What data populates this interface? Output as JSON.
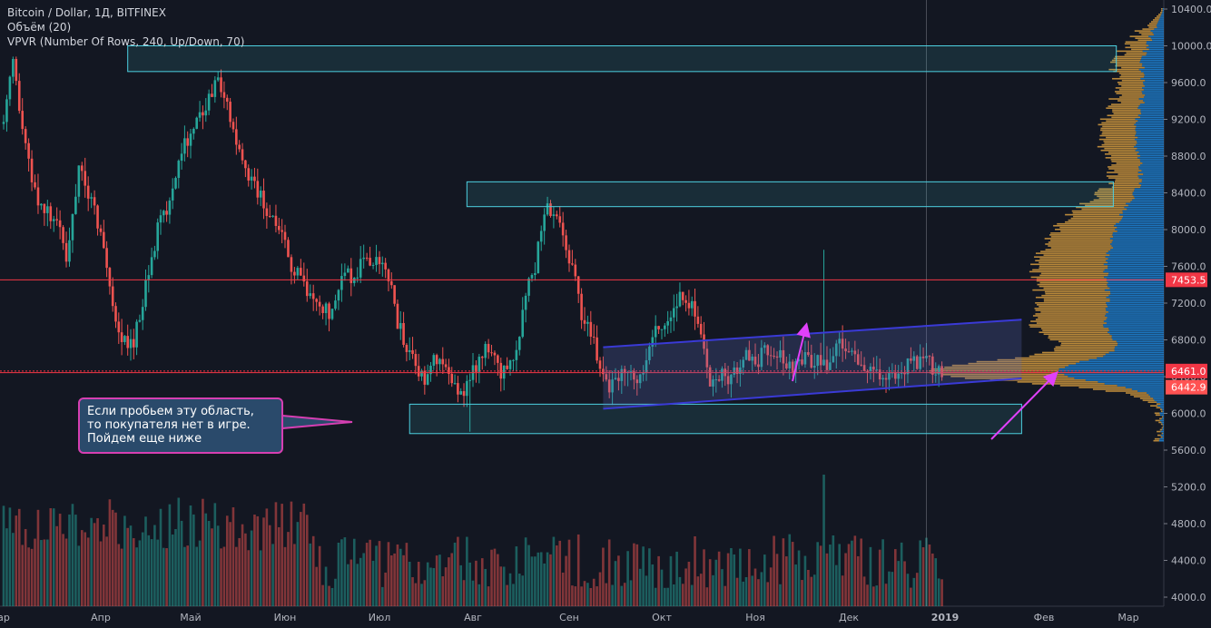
{
  "legend": {
    "symbol": "Bitcoin / Dollar, 1Д, BITFINEX",
    "volume": "Объём (20)",
    "vpvr": "VPVR (Number Of Rows, 240, Up/Down, 70)"
  },
  "callout": {
    "line1": "Если пробьем эту область,",
    "line2": "то покупателя нет в игре.",
    "line3": "Пойдем еще ниже"
  },
  "colors": {
    "background": "#131722",
    "up": "#26a69a",
    "down": "#ef5350",
    "box": "#4dd0e1",
    "channel": "#3a3ad6",
    "arrow": "#e040fb",
    "callout_bg": "#2a4a6b",
    "price_line": "#f23645",
    "vp_up": "#e2a541",
    "vp_down": "#2196f3"
  },
  "chart_data": {
    "type": "candlestick",
    "title": "Bitcoin / Dollar, 1Д, BITFINEX",
    "ylim": [
      3900,
      10550
    ],
    "y_ticks": [
      "10400.0",
      "10000.0",
      "9600.0",
      "9200.0",
      "8800.0",
      "8400.0",
      "8000.0",
      "7600.0",
      "7200.0",
      "6800.0",
      "6400.0",
      "6000.0",
      "5600.0",
      "5200.0",
      "4800.0",
      "4400.0",
      "4000.0"
    ],
    "y_tick_values": [
      10400,
      10000,
      9600,
      9200,
      8800,
      8400,
      8000,
      7600,
      7200,
      6800,
      6400,
      6000,
      5600,
      5200,
      4800,
      4400,
      4000
    ],
    "x_labels": [
      "ар",
      "Апр",
      "Май",
      "Июн",
      "Июл",
      "Авг",
      "Сен",
      "Окт",
      "Ноя",
      "Дек",
      "2019",
      "Фев",
      "Мар"
    ],
    "x_label_months": [
      -0.2,
      1,
      2,
      3,
      4,
      5,
      6,
      7,
      8,
      9,
      10,
      11,
      12
    ],
    "price_labels": [
      {
        "text": "7453.5",
        "value": 7453.5,
        "kind": "line"
      },
      {
        "text": "6461.0",
        "value": 6461,
        "kind": "current"
      },
      {
        "text": "6442.9",
        "value": 6442.9,
        "kind": "vp"
      }
    ],
    "series_close_path": [
      [
        0,
        9150
      ],
      [
        3,
        9800
      ],
      [
        7,
        8900
      ],
      [
        10,
        8400
      ],
      [
        14,
        8200
      ],
      [
        18,
        8000
      ],
      [
        20,
        7600
      ],
      [
        24,
        8700
      ],
      [
        28,
        8300
      ],
      [
        32,
        7800
      ],
      [
        36,
        7000
      ],
      [
        38,
        6800
      ],
      [
        42,
        6750
      ],
      [
        46,
        7400
      ],
      [
        50,
        8000
      ],
      [
        54,
        8300
      ],
      [
        58,
        8900
      ],
      [
        62,
        9100
      ],
      [
        65,
        9300
      ],
      [
        68,
        9500
      ],
      [
        70,
        9700
      ],
      [
        74,
        9200
      ],
      [
        78,
        8700
      ],
      [
        82,
        8500
      ],
      [
        86,
        8200
      ],
      [
        90,
        8000
      ],
      [
        94,
        7600
      ],
      [
        98,
        7400
      ],
      [
        102,
        7200
      ],
      [
        106,
        7100
      ],
      [
        110,
        7500
      ],
      [
        114,
        7500
      ],
      [
        118,
        7700
      ],
      [
        122,
        7600
      ],
      [
        126,
        7400
      ],
      [
        128,
        7000
      ],
      [
        131,
        6700
      ],
      [
        134,
        6500
      ],
      [
        137,
        6400
      ],
      [
        140,
        6600
      ],
      [
        143,
        6500
      ],
      [
        146,
        6300
      ],
      [
        149,
        6200
      ],
      [
        152,
        6400
      ],
      [
        155,
        6600
      ],
      [
        158,
        6700
      ],
      [
        161,
        6500
      ],
      [
        164,
        6400
      ],
      [
        167,
        6700
      ],
      [
        170,
        7300
      ],
      [
        173,
        7600
      ],
      [
        176,
        8200
      ],
      [
        179,
        8200
      ],
      [
        182,
        7900
      ],
      [
        185,
        7600
      ],
      [
        188,
        7100
      ],
      [
        191,
        6900
      ],
      [
        194,
        6500
      ],
      [
        197,
        6300
      ],
      [
        200,
        6400
      ],
      [
        203,
        6500
      ],
      [
        206,
        6400
      ],
      [
        209,
        6600
      ],
      [
        212,
        6900
      ],
      [
        215,
        7000
      ],
      [
        218,
        7100
      ],
      [
        221,
        7300
      ],
      [
        224,
        7200
      ],
      [
        227,
        6800
      ],
      [
        230,
        6300
      ],
      [
        233,
        6400
      ],
      [
        236,
        6400
      ],
      [
        239,
        6500
      ],
      [
        242,
        6600
      ],
      [
        245,
        6500
      ],
      [
        248,
        6700
      ],
      [
        251,
        6600
      ],
      [
        254,
        6600
      ],
      [
        257,
        6500
      ],
      [
        260,
        6600
      ],
      [
        263,
        6550
      ],
      [
        266,
        6600
      ],
      [
        268,
        6400
      ],
      [
        270,
        6600
      ],
      [
        272,
        6800
      ],
      [
        275,
        6700
      ],
      [
        278,
        6550
      ],
      [
        281,
        6500
      ],
      [
        284,
        6450
      ],
      [
        287,
        6400
      ],
      [
        290,
        6450
      ],
      [
        293,
        6500
      ],
      [
        296,
        6550
      ],
      [
        299,
        6600
      ],
      [
        302,
        6500
      ],
      [
        305,
        6460
      ]
    ],
    "spike_days": [
      {
        "day": 152,
        "high": 5800
      },
      {
        "day": 200,
        "high": 6250
      },
      {
        "day": 267,
        "high": 7780
      }
    ],
    "anchor_days": [
      {
        "day": 0,
        "label_month": -0.2
      },
      {
        "day": 31,
        "label_month": 1
      },
      {
        "day": 61,
        "label_month": 2
      },
      {
        "day": 92,
        "label_month": 3
      },
      {
        "day": 122,
        "label_month": 4
      },
      {
        "day": 153,
        "label_month": 5
      },
      {
        "day": 184,
        "label_month": 6
      },
      {
        "day": 214,
        "label_month": 7
      },
      {
        "day": 245,
        "label_month": 8
      },
      {
        "day": 275,
        "label_month": 9
      },
      {
        "day": 306,
        "label_month": 10
      },
      {
        "day": 337,
        "label_month": 11
      },
      {
        "day": 365,
        "label_month": 12
      }
    ],
    "zones": [
      {
        "name": "resistance-top",
        "from_day": 40,
        "to_day": 361,
        "low": 9720,
        "high": 10000
      },
      {
        "name": "resistance-mid",
        "from_day": 151,
        "to_day": 360,
        "low": 8250,
        "high": 8520
      },
      {
        "name": "support-low",
        "from_day": 132,
        "to_day": 330,
        "low": 5780,
        "high": 6100
      }
    ],
    "channel": {
      "start_day": 195,
      "end_day": 330,
      "low_start": 6050,
      "low_end": 6380,
      "high_start": 6720,
      "high_end": 7020
    },
    "hlines": [
      7453.5,
      6461,
      6442.9
    ],
    "volume": {
      "max": 100
    }
  }
}
